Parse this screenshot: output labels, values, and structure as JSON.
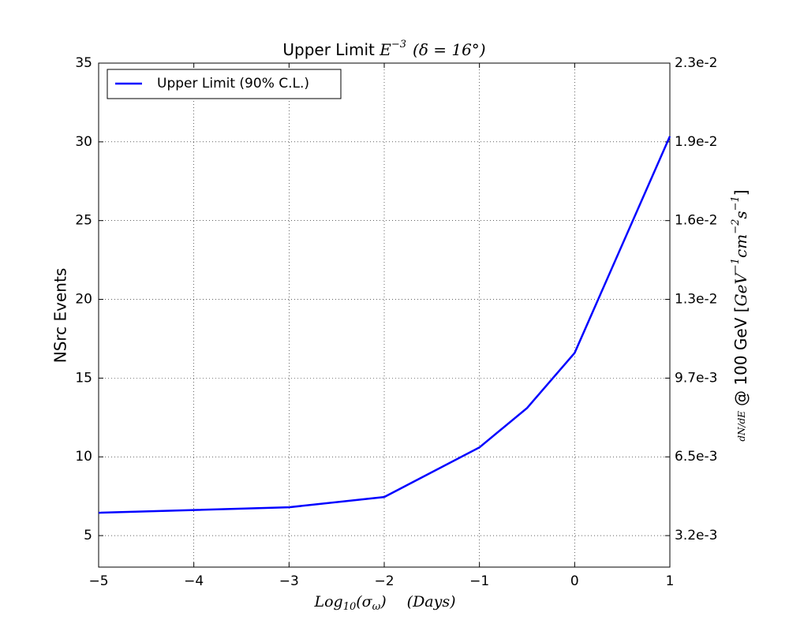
{
  "chart_data": {
    "type": "line",
    "title": {
      "text": "Upper Limit",
      "base": "E",
      "exponent": "−3",
      "condition": "(δ = 16°)"
    },
    "x_label": [
      "Log",
      "10",
      "(σ",
      "ω",
      ")",
      "(Days)"
    ],
    "y_label": "NSrc Events",
    "y2_label": [
      "dN/dE",
      "@ 100 GeV [",
      "GeV",
      "−1",
      "cm",
      "−2",
      "s",
      "−1",
      "]"
    ],
    "x": [
      -5,
      -3,
      -2,
      -1,
      -0.5,
      0,
      1
    ],
    "series": [
      {
        "name": "Upper Limit (90% C.L.)",
        "color": "#0000ff",
        "values": [
          6.45,
          6.8,
          7.45,
          10.6,
          13.1,
          16.6,
          30.35
        ]
      }
    ],
    "xlim": [
      -5,
      1
    ],
    "xticks": [
      {
        "value": -5,
        "label": "−5"
      },
      {
        "value": -4,
        "label": "−4"
      },
      {
        "value": -3,
        "label": "−3"
      },
      {
        "value": -2,
        "label": "−2"
      },
      {
        "value": -1,
        "label": "−1"
      },
      0,
      1
    ],
    "ylim": [
      3,
      35
    ],
    "yticks": [
      5,
      10,
      15,
      20,
      25,
      30,
      35
    ],
    "y2lim": [
      0.001944,
      0.02268
    ],
    "y2ticks": [
      {
        "value": 0.00324,
        "label": "3.2e-3"
      },
      {
        "value": 0.00648,
        "label": "6.5e-3"
      },
      {
        "value": 0.00972,
        "label": "9.7e-3"
      },
      {
        "value": 0.01296,
        "label": "1.3e-2"
      },
      {
        "value": 0.0162,
        "label": "1.6e-2"
      },
      {
        "value": 0.01944,
        "label": "1.9e-2"
      },
      {
        "value": 0.02268,
        "label": "2.3e-2"
      }
    ],
    "grid": true,
    "legend": "upper left"
  }
}
